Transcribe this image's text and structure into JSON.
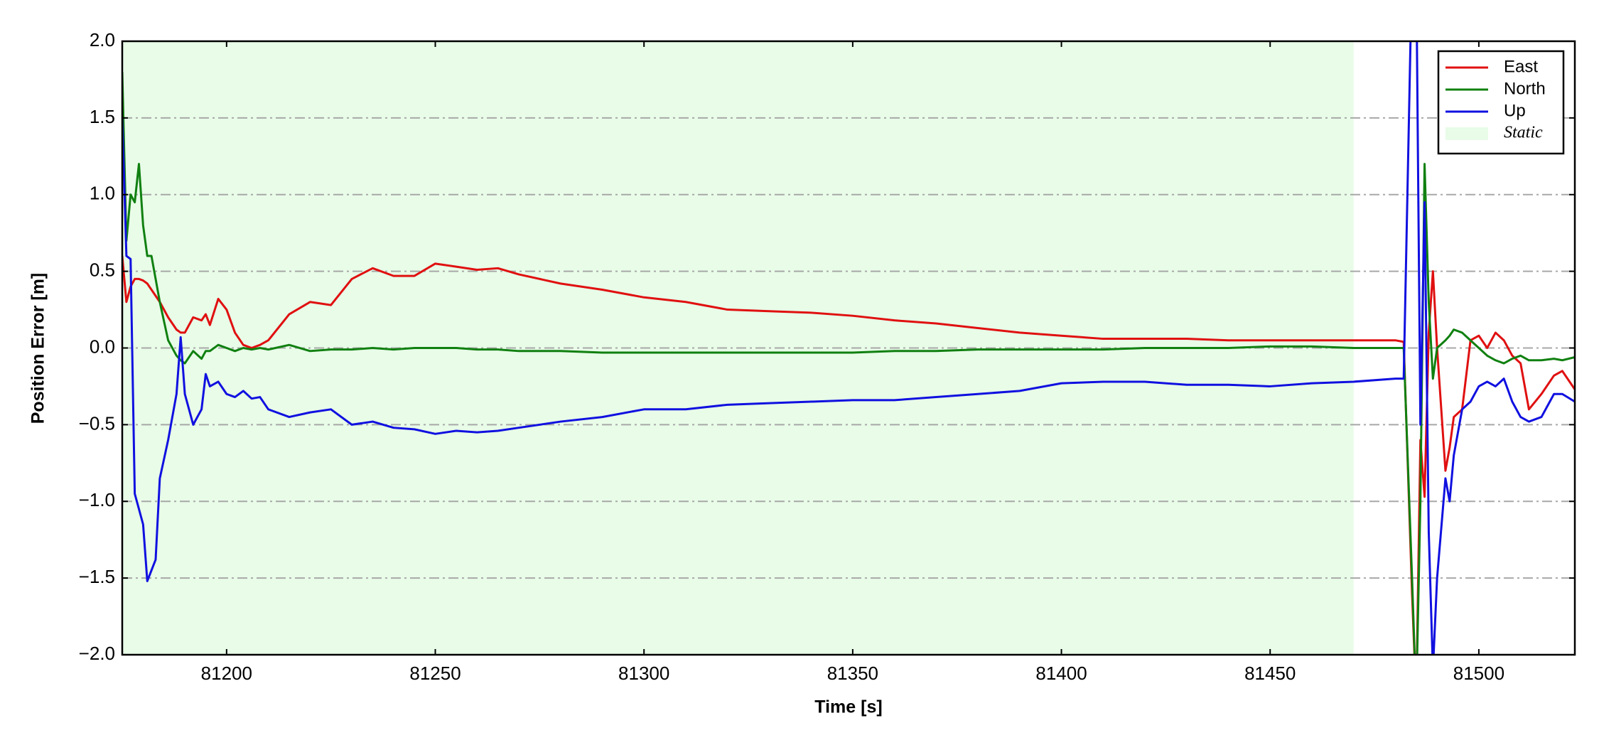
{
  "chart_data": {
    "type": "line",
    "xlabel": "Time [s]",
    "ylabel": "Position Error [m]",
    "xlim": [
      81175,
      81523
    ],
    "ylim": [
      -2,
      2
    ],
    "xticks": [
      81200,
      81250,
      81300,
      81350,
      81400,
      81450,
      81500
    ],
    "yticks": [
      {
        "value": -2,
        "label": "−2.0"
      },
      {
        "value": -1.5,
        "label": "−1.5"
      },
      {
        "value": -1,
        "label": "−1.0"
      },
      {
        "value": -0.5,
        "label": "−0.5"
      },
      {
        "value": 0,
        "label": "0.0"
      },
      0.5,
      {
        "value": 1,
        "label": "1.0"
      },
      1.5,
      {
        "value": 2,
        "label": "2.0"
      }
    ],
    "grid": true,
    "legend": "upper right",
    "regions": [
      {
        "name": "Static",
        "color": "#e8fce8",
        "x": [
          81175,
          81470
        ]
      }
    ],
    "x": [
      81175,
      81176,
      81177,
      81178,
      81179,
      81180,
      81181,
      81182,
      81183,
      81184,
      81186,
      81188,
      81189,
      81190,
      81192,
      81194,
      81195,
      81196,
      81198,
      81200,
      81202,
      81204,
      81206,
      81208,
      81210,
      81215,
      81220,
      81225,
      81230,
      81235,
      81240,
      81245,
      81250,
      81255,
      81260,
      81265,
      81270,
      81280,
      81290,
      81300,
      81310,
      81320,
      81330,
      81340,
      81350,
      81360,
      81370,
      81380,
      81390,
      81400,
      81410,
      81420,
      81430,
      81440,
      81450,
      81460,
      81470,
      81480,
      81482,
      81484,
      81485,
      81486,
      81487,
      81488,
      81489,
      81490,
      81492,
      81493,
      81494,
      81496,
      81498,
      81500,
      81502,
      81504,
      81506,
      81508,
      81510,
      81512,
      81515,
      81518,
      81520,
      81523
    ],
    "series": [
      {
        "name": "East",
        "color": "#e01010",
        "values": [
          0.6,
          0.3,
          0.4,
          0.45,
          0.45,
          0.44,
          0.42,
          0.38,
          0.34,
          0.3,
          0.2,
          0.12,
          0.1,
          0.1,
          0.2,
          0.18,
          0.22,
          0.15,
          0.32,
          0.25,
          0.1,
          0.02,
          0.0,
          0.02,
          0.05,
          0.22,
          0.3,
          0.28,
          0.45,
          0.52,
          0.47,
          0.47,
          0.55,
          0.53,
          0.51,
          0.52,
          0.48,
          0.42,
          0.38,
          0.33,
          0.3,
          0.25,
          0.24,
          0.23,
          0.21,
          0.18,
          0.16,
          0.13,
          0.1,
          0.08,
          0.06,
          0.06,
          0.06,
          0.05,
          0.05,
          0.05,
          0.05,
          0.05,
          0.04,
          -1.6,
          -2.3,
          -0.6,
          -0.97,
          0.1,
          0.5,
          0.0,
          -0.8,
          -0.65,
          -0.45,
          -0.4,
          0.05,
          0.08,
          0.0,
          0.1,
          0.05,
          -0.05,
          -0.1,
          -0.4,
          -0.3,
          -0.18,
          -0.15,
          -0.27
        ]
      },
      {
        "name": "North",
        "color": "#108010",
        "values": [
          1.8,
          0.7,
          1.0,
          0.95,
          1.2,
          0.8,
          0.6,
          0.6,
          0.45,
          0.3,
          0.05,
          -0.05,
          -0.08,
          -0.1,
          -0.02,
          -0.07,
          -0.02,
          -0.02,
          0.02,
          0.0,
          -0.02,
          0.0,
          -0.01,
          0.0,
          -0.01,
          0.02,
          -0.02,
          -0.01,
          -0.01,
          0.0,
          -0.01,
          0.0,
          0.0,
          0.0,
          -0.01,
          -0.01,
          -0.02,
          -0.02,
          -0.03,
          -0.03,
          -0.03,
          -0.03,
          -0.03,
          -0.03,
          -0.03,
          -0.02,
          -0.02,
          -0.01,
          -0.01,
          -0.01,
          -0.01,
          0.0,
          0.0,
          0.0,
          0.01,
          0.01,
          0.0,
          0.0,
          0.0,
          -1.5,
          -2.3,
          -1.0,
          1.2,
          0.3,
          -0.2,
          0.0,
          0.05,
          0.08,
          0.12,
          0.1,
          0.05,
          0.0,
          -0.05,
          -0.08,
          -0.1,
          -0.07,
          -0.05,
          -0.08,
          -0.08,
          -0.07,
          -0.08,
          -0.06
        ]
      },
      {
        "name": "Up",
        "color": "#1010e0",
        "values": [
          1.5,
          0.6,
          0.58,
          -0.95,
          -1.05,
          -1.15,
          -1.52,
          -1.45,
          -1.38,
          -0.85,
          -0.6,
          -0.3,
          0.07,
          -0.3,
          -0.5,
          -0.4,
          -0.17,
          -0.25,
          -0.22,
          -0.3,
          -0.32,
          -0.28,
          -0.33,
          -0.32,
          -0.4,
          -0.45,
          -0.42,
          -0.4,
          -0.5,
          -0.48,
          -0.52,
          -0.53,
          -0.56,
          -0.54,
          -0.55,
          -0.54,
          -0.52,
          -0.48,
          -0.45,
          -0.4,
          -0.4,
          -0.37,
          -0.36,
          -0.35,
          -0.34,
          -0.34,
          -0.32,
          -0.3,
          -0.28,
          -0.23,
          -0.22,
          -0.22,
          -0.24,
          -0.24,
          -0.25,
          -0.23,
          -0.22,
          -0.2,
          -0.2,
          2.5,
          2.5,
          -0.5,
          0.95,
          -1.2,
          -2.1,
          -1.5,
          -0.85,
          -1.0,
          -0.7,
          -0.4,
          -0.35,
          -0.25,
          -0.22,
          -0.25,
          -0.2,
          -0.35,
          -0.45,
          -0.48,
          -0.45,
          -0.3,
          -0.3,
          -0.35
        ]
      }
    ]
  }
}
